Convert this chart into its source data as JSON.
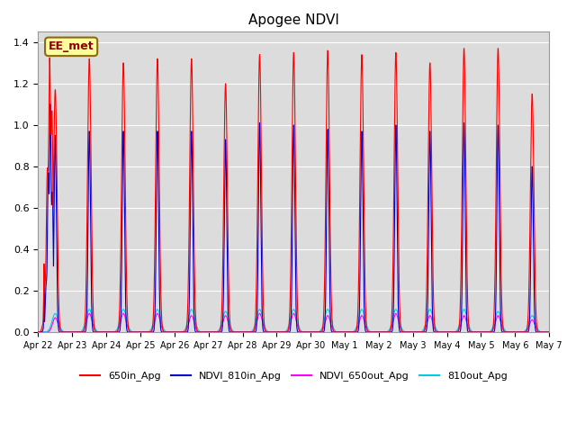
{
  "title": "Apogee NDVI",
  "title_fontsize": 11,
  "background_color": "#ffffff",
  "plot_bg_color": "#dcdcdc",
  "ylim": [
    0,
    1.45
  ],
  "yticks": [
    0.0,
    0.2,
    0.4,
    0.6,
    0.8,
    1.0,
    1.2,
    1.4
  ],
  "colors": {
    "650in_Apg": "#ff0000",
    "NDVI_810in_Apg": "#0000cc",
    "NDVI_650out_Apg": "#ff00ff",
    "810out_Apg": "#00ccdd"
  },
  "label_box_text": "EE_met",
  "label_box_color": "#ffff99",
  "label_box_border": "#8b6914",
  "n_days": 15,
  "daily_peak_red": [
    1.17,
    1.32,
    1.3,
    1.32,
    1.32,
    1.2,
    1.34,
    1.35,
    1.36,
    1.34,
    1.35,
    1.3,
    1.37,
    1.37,
    1.15
  ],
  "daily_peak_blue": [
    0.95,
    0.97,
    0.97,
    0.97,
    0.97,
    0.93,
    1.01,
    1.0,
    0.98,
    0.97,
    1.0,
    0.97,
    1.01,
    1.0,
    0.8
  ],
  "daily_peak_cyan": [
    0.09,
    0.11,
    0.11,
    0.11,
    0.11,
    0.1,
    0.11,
    0.11,
    0.11,
    0.11,
    0.11,
    0.11,
    0.11,
    0.1,
    0.08
  ],
  "daily_peak_magenta": [
    0.07,
    0.09,
    0.09,
    0.09,
    0.08,
    0.08,
    0.09,
    0.09,
    0.08,
    0.08,
    0.09,
    0.08,
    0.08,
    0.08,
    0.06
  ],
  "x_tick_labels": [
    "Apr 22",
    "Apr 23",
    "Apr 24",
    "Apr 25",
    "Apr 26",
    "Apr 27",
    "Apr 28",
    "Apr 29",
    "Apr 30",
    "May 1",
    "May 2",
    "May 3",
    "May 4",
    "May 5",
    "May 6",
    "May 7"
  ],
  "legend_labels": [
    "650in_Apg",
    "NDVI_810in_Apg",
    "NDVI_650out_Apg",
    "810out_Apg"
  ],
  "legend_colors": [
    "#ff0000",
    "#0000cc",
    "#ff00ff",
    "#00ccdd"
  ]
}
